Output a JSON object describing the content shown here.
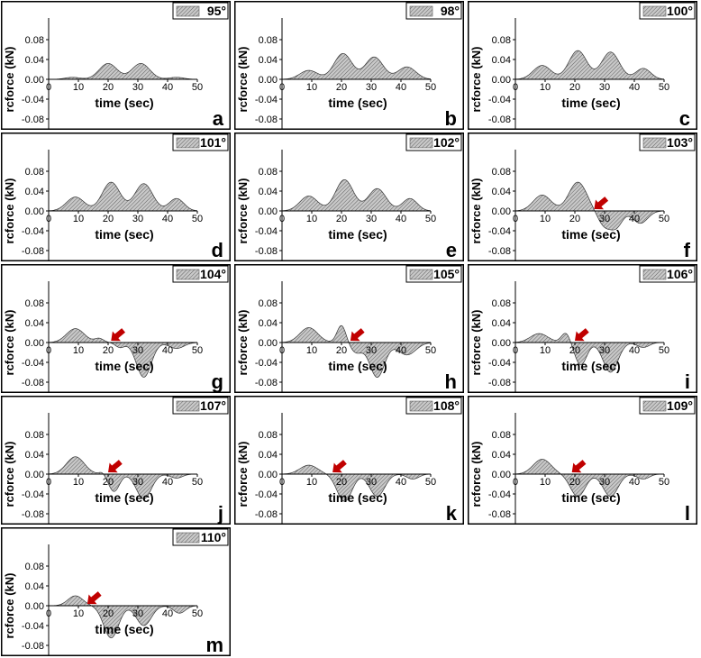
{
  "figure": {
    "y_axis_label": "rcforce (kN)",
    "x_axis_label": "time (sec)",
    "x_ticks": [
      "0",
      "10",
      "20",
      "30",
      "40",
      "50"
    ],
    "y_ticks": [
      "0.08",
      "0.04",
      "0.00",
      "-0.04",
      "-0.08"
    ]
  },
  "colors": {
    "fill": "#c8c8c8",
    "hatch": "#555555",
    "arrow": "#c00000",
    "frame": "#000000"
  },
  "chart_data": [
    {
      "type": "area",
      "panel_letter": "a",
      "legend": "95°",
      "xlim": [
        0,
        50
      ],
      "ylim": [
        -0.1,
        0.1
      ],
      "arrow": null,
      "peaks": [
        [
          8,
          0.004,
          2.5
        ],
        [
          20,
          0.032,
          3
        ],
        [
          31,
          0.032,
          3
        ],
        [
          43,
          0.004,
          2.5
        ]
      ],
      "troughs": []
    },
    {
      "type": "area",
      "panel_letter": "b",
      "legend": "98°",
      "xlim": [
        0,
        50
      ],
      "ylim": [
        -0.1,
        0.1
      ],
      "arrow": null,
      "peaks": [
        [
          9,
          0.018,
          3
        ],
        [
          20.5,
          0.052,
          3
        ],
        [
          31,
          0.045,
          3
        ],
        [
          42,
          0.025,
          3
        ]
      ],
      "troughs": []
    },
    {
      "type": "area",
      "panel_letter": "c",
      "legend": "100°",
      "xlim": [
        0,
        50
      ],
      "ylim": [
        -0.1,
        0.1
      ],
      "arrow": null,
      "peaks": [
        [
          9,
          0.028,
          3
        ],
        [
          21,
          0.058,
          3
        ],
        [
          32,
          0.055,
          3
        ],
        [
          43,
          0.022,
          2.5
        ]
      ],
      "troughs": []
    },
    {
      "type": "area",
      "panel_letter": "d",
      "legend": "101°",
      "xlim": [
        0,
        50
      ],
      "ylim": [
        -0.1,
        0.1
      ],
      "arrow": null,
      "peaks": [
        [
          9,
          0.028,
          3
        ],
        [
          21,
          0.058,
          3
        ],
        [
          32,
          0.055,
          3
        ],
        [
          43,
          0.025,
          2.5
        ]
      ],
      "troughs": []
    },
    {
      "type": "area",
      "panel_letter": "e",
      "legend": "102°",
      "xlim": [
        0,
        50
      ],
      "ylim": [
        -0.1,
        0.1
      ],
      "arrow": null,
      "peaks": [
        [
          9,
          0.03,
          3
        ],
        [
          21,
          0.063,
          3
        ],
        [
          32,
          0.045,
          3
        ],
        [
          43,
          0.025,
          2.5
        ]
      ],
      "troughs": []
    },
    {
      "type": "area",
      "panel_letter": "f",
      "legend": "103°",
      "xlim": [
        0,
        50
      ],
      "ylim": [
        -0.1,
        0.1
      ],
      "arrow": 26.5,
      "peaks": [
        [
          9,
          0.032,
          3
        ],
        [
          21,
          0.058,
          3
        ]
      ],
      "troughs": [
        [
          30,
          -0.03,
          2.2
        ],
        [
          34,
          -0.03,
          2
        ],
        [
          42,
          -0.025,
          2.5
        ]
      ]
    },
    {
      "type": "area",
      "panel_letter": "g",
      "legend": "104°",
      "xlim": [
        0,
        50
      ],
      "ylim": [
        -0.1,
        0.1
      ],
      "arrow": 21,
      "peaks": [
        [
          9,
          0.028,
          3
        ],
        [
          17,
          0.008,
          1.5
        ]
      ],
      "troughs": [
        [
          24,
          -0.01,
          1.5
        ],
        [
          32,
          -0.07,
          2.5
        ],
        [
          43,
          -0.012,
          2.5
        ]
      ]
    },
    {
      "type": "area",
      "panel_letter": "h",
      "legend": "105°",
      "xlim": [
        0,
        50
      ],
      "ylim": [
        -0.1,
        0.1
      ],
      "arrow": 23,
      "peaks": [
        [
          9,
          0.03,
          3
        ],
        [
          20,
          0.035,
          1.5
        ]
      ],
      "troughs": [
        [
          25,
          -0.02,
          2
        ],
        [
          32,
          -0.07,
          2.5
        ],
        [
          42,
          -0.025,
          3
        ]
      ]
    },
    {
      "type": "area",
      "panel_letter": "i",
      "legend": "106°",
      "xlim": [
        0,
        50
      ],
      "ylim": [
        -0.1,
        0.1
      ],
      "arrow": 20,
      "peaks": [
        [
          8,
          0.018,
          3
        ],
        [
          17,
          0.02,
          1.5
        ]
      ],
      "troughs": [
        [
          22,
          -0.045,
          2
        ],
        [
          32,
          -0.06,
          2.5
        ],
        [
          43,
          -0.01,
          2
        ]
      ]
    },
    {
      "type": "area",
      "panel_letter": "j",
      "legend": "107°",
      "xlim": [
        0,
        50
      ],
      "ylim": [
        -0.1,
        0.1
      ],
      "arrow": 20,
      "peaks": [
        [
          9,
          0.035,
          3
        ],
        [
          18,
          0.005,
          1
        ]
      ],
      "troughs": [
        [
          22,
          -0.035,
          1.8
        ],
        [
          32,
          -0.05,
          2.5
        ],
        [
          43,
          -0.008,
          2
        ]
      ]
    },
    {
      "type": "area",
      "panel_letter": "k",
      "legend": "108°",
      "xlim": [
        0,
        50
      ],
      "ylim": [
        -0.1,
        0.1
      ],
      "arrow": 17,
      "peaks": [
        [
          9,
          0.018,
          3
        ]
      ],
      "troughs": [
        [
          21,
          -0.055,
          2.5
        ],
        [
          32,
          -0.045,
          2.5
        ],
        [
          44,
          -0.01,
          2
        ]
      ]
    },
    {
      "type": "area",
      "panel_letter": "l",
      "legend": "109°",
      "xlim": [
        0,
        50
      ],
      "ylim": [
        -0.1,
        0.1
      ],
      "arrow": 19,
      "peaks": [
        [
          9,
          0.03,
          3
        ]
      ],
      "troughs": [
        [
          21,
          -0.045,
          2.5
        ],
        [
          32,
          -0.045,
          2.5
        ],
        [
          43,
          -0.01,
          2
        ]
      ]
    },
    {
      "type": "area",
      "panel_letter": "m",
      "legend": "110°",
      "xlim": [
        0,
        50
      ],
      "ylim": [
        -0.1,
        0.1
      ],
      "arrow": 13,
      "peaks": [
        [
          9,
          0.02,
          2.5
        ]
      ],
      "troughs": [
        [
          21,
          -0.065,
          2.5
        ],
        [
          32,
          -0.04,
          2.5
        ],
        [
          44,
          -0.015,
          2
        ]
      ]
    }
  ]
}
